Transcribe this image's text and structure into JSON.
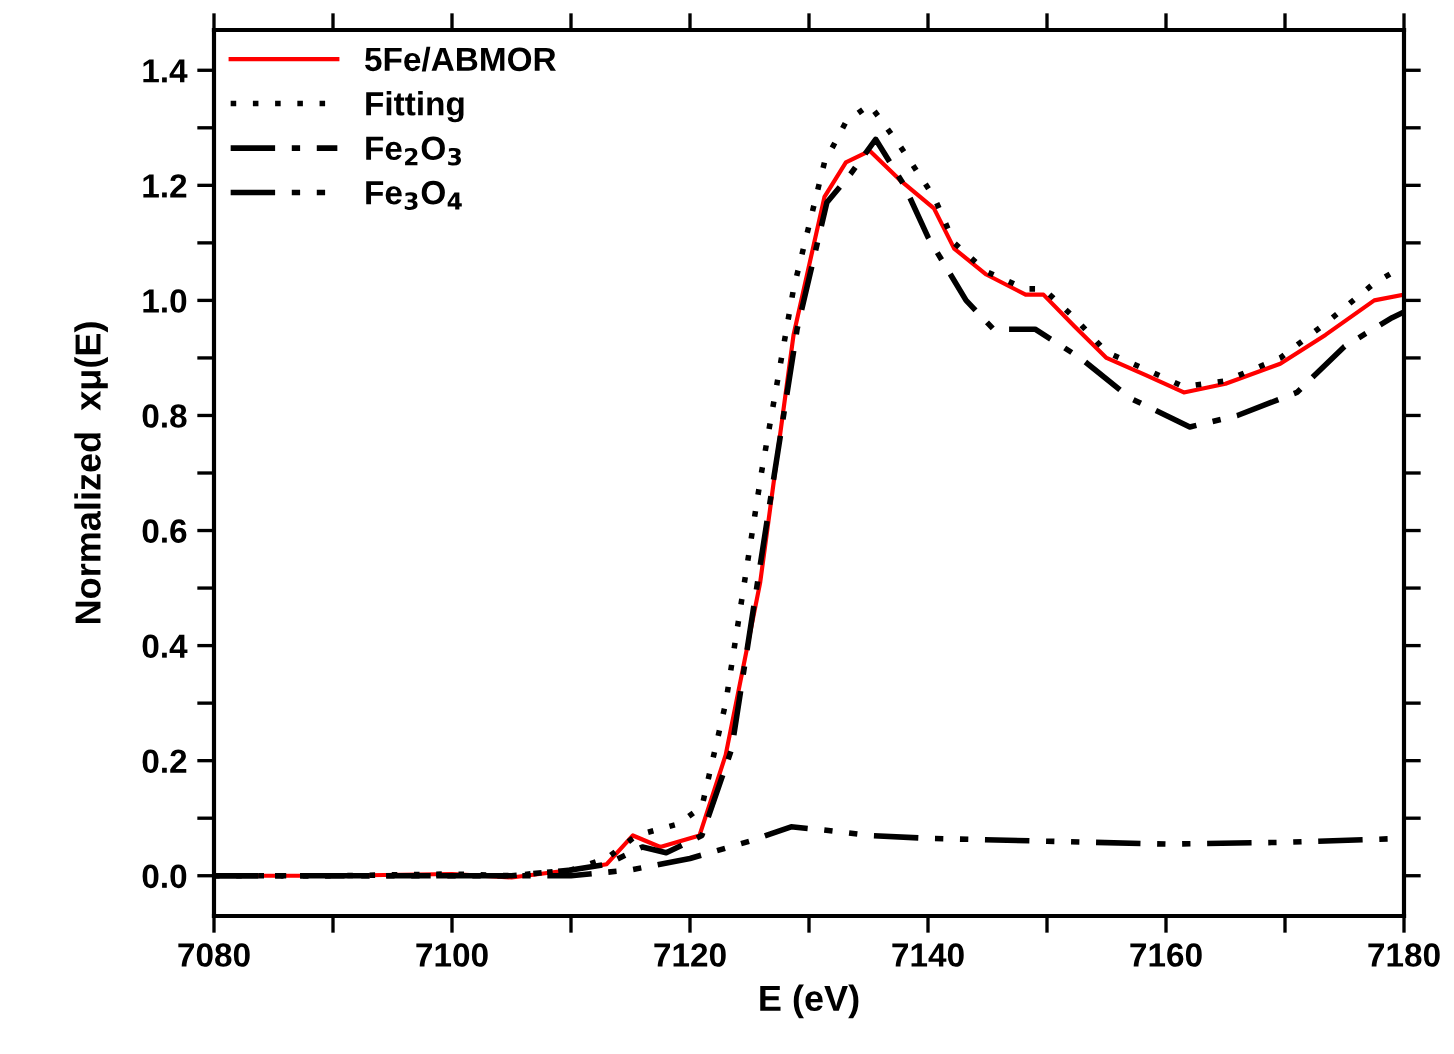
{
  "chart_data": {
    "type": "line",
    "xlabel": "E (eV)",
    "ylabel": "Normalized  xμ(E)",
    "xlim": [
      7080,
      7180
    ],
    "ylim": [
      -0.07,
      1.47
    ],
    "xticks": [
      7080,
      {
        "value": 7090,
        "label": null
      },
      7100,
      {
        "value": 7110,
        "label": null
      },
      7120,
      {
        "value": 7130,
        "label": null
      },
      7140,
      {
        "value": 7150,
        "label": null
      },
      7160,
      {
        "value": 7170,
        "label": null
      },
      7180
    ],
    "yticks": [
      {
        "value": 0,
        "label": "0.0"
      },
      {
        "value": 0.1,
        "label": null
      },
      {
        "value": 0.2,
        "label": "0.2"
      },
      {
        "value": 0.3,
        "label": null
      },
      {
        "value": 0.4,
        "label": "0.4"
      },
      {
        "value": 0.5,
        "label": null
      },
      {
        "value": 0.6,
        "label": "0.6"
      },
      {
        "value": 0.7,
        "label": null
      },
      {
        "value": 0.8,
        "label": "0.8"
      },
      {
        "value": 0.9,
        "label": null
      },
      {
        "value": 1.0,
        "label": "1.0"
      },
      {
        "value": 1.1,
        "label": null
      },
      {
        "value": 1.2,
        "label": "1.2"
      },
      {
        "value": 1.3,
        "label": null
      },
      {
        "value": 1.4,
        "label": "1.4"
      }
    ],
    "grid": false,
    "legend": "top left",
    "series": [
      {
        "name": "5Fe/ABMOR",
        "color": "#ff0000",
        "line_style": "solid",
        "x": [
          7080,
          7090,
          7100,
          7105,
          7110,
          7113,
          7115.2,
          7117.5,
          7120.8,
          7123,
          7125.9,
          7128.7,
          7131.3,
          7133.1,
          7135.1,
          7137.6,
          7140.5,
          7142.2,
          7144.9,
          7148.2,
          7149.7,
          7152.3,
          7155,
          7158.3,
          7161.5,
          7165,
          7169.6,
          7173.4,
          7177.5,
          7180
        ],
        "values": [
          0,
          0,
          0.003,
          -0.003,
          0.01,
          0.02,
          0.07,
          0.05,
          0.07,
          0.21,
          0.51,
          0.94,
          1.18,
          1.24,
          1.26,
          1.21,
          1.16,
          1.09,
          1.045,
          1.01,
          1.01,
          0.955,
          0.9,
          0.87,
          0.84,
          0.855,
          0.89,
          0.94,
          1.0,
          1.01
        ]
      },
      {
        "name": "Fitting",
        "color": "#000000",
        "line_style": "dotted",
        "x": [
          7080,
          7090,
          7100,
          7105,
          7110,
          7113,
          7115.5,
          7119,
          7121,
          7123,
          7126,
          7128.7,
          7131.3,
          7133.1,
          7135.1,
          7137.6,
          7140.5,
          7142.2,
          7144.9,
          7148.2,
          7149.7,
          7152.3,
          7155,
          7158.3,
          7161.5,
          7165,
          7169.6,
          7173.4,
          7177.5,
          7180
        ],
        "values": [
          0,
          0,
          0.003,
          0,
          0.01,
          0.03,
          0.07,
          0.09,
          0.12,
          0.3,
          0.7,
          1.02,
          1.24,
          1.31,
          1.34,
          1.27,
          1.18,
          1.1,
          1.05,
          1.02,
          1.02,
          0.97,
          0.91,
          0.88,
          0.85,
          0.86,
          0.9,
          0.96,
          1.03,
          1.06
        ]
      },
      {
        "name": "Fe$_{2}$O$_{3}$",
        "color": "#000000",
        "line_style": "dashdot",
        "x": [
          7080,
          7090,
          7100,
          7105,
          7110,
          7113,
          7116,
          7118,
          7121,
          7123.5,
          7126.5,
          7129,
          7131.5,
          7133.5,
          7135.6,
          7138,
          7140,
          7143.2,
          7145.5,
          7149,
          7152.8,
          7157,
          7162,
          7166,
          7171,
          7175,
          7179,
          7180
        ],
        "values": [
          0,
          0,
          0,
          0,
          0.01,
          0.02,
          0.05,
          0.04,
          0.07,
          0.22,
          0.62,
          0.95,
          1.17,
          1.22,
          1.28,
          1.2,
          1.11,
          1.0,
          0.95,
          0.95,
          0.9,
          0.83,
          0.78,
          0.8,
          0.84,
          0.92,
          0.97,
          0.98
        ]
      },
      {
        "name": "Fe$_{3}$O$_{4}$",
        "color": "#000000",
        "line_style": "dashdotdot",
        "x": [
          7080,
          7100,
          7110,
          7115,
          7120,
          7125,
          7128.5,
          7131,
          7135,
          7140,
          7150,
          7160,
          7170,
          7180
        ],
        "values": [
          0,
          0,
          0,
          0.01,
          0.03,
          0.06,
          0.085,
          0.08,
          0.07,
          0.065,
          0.06,
          0.055,
          0.058,
          0.065
        ]
      }
    ]
  }
}
